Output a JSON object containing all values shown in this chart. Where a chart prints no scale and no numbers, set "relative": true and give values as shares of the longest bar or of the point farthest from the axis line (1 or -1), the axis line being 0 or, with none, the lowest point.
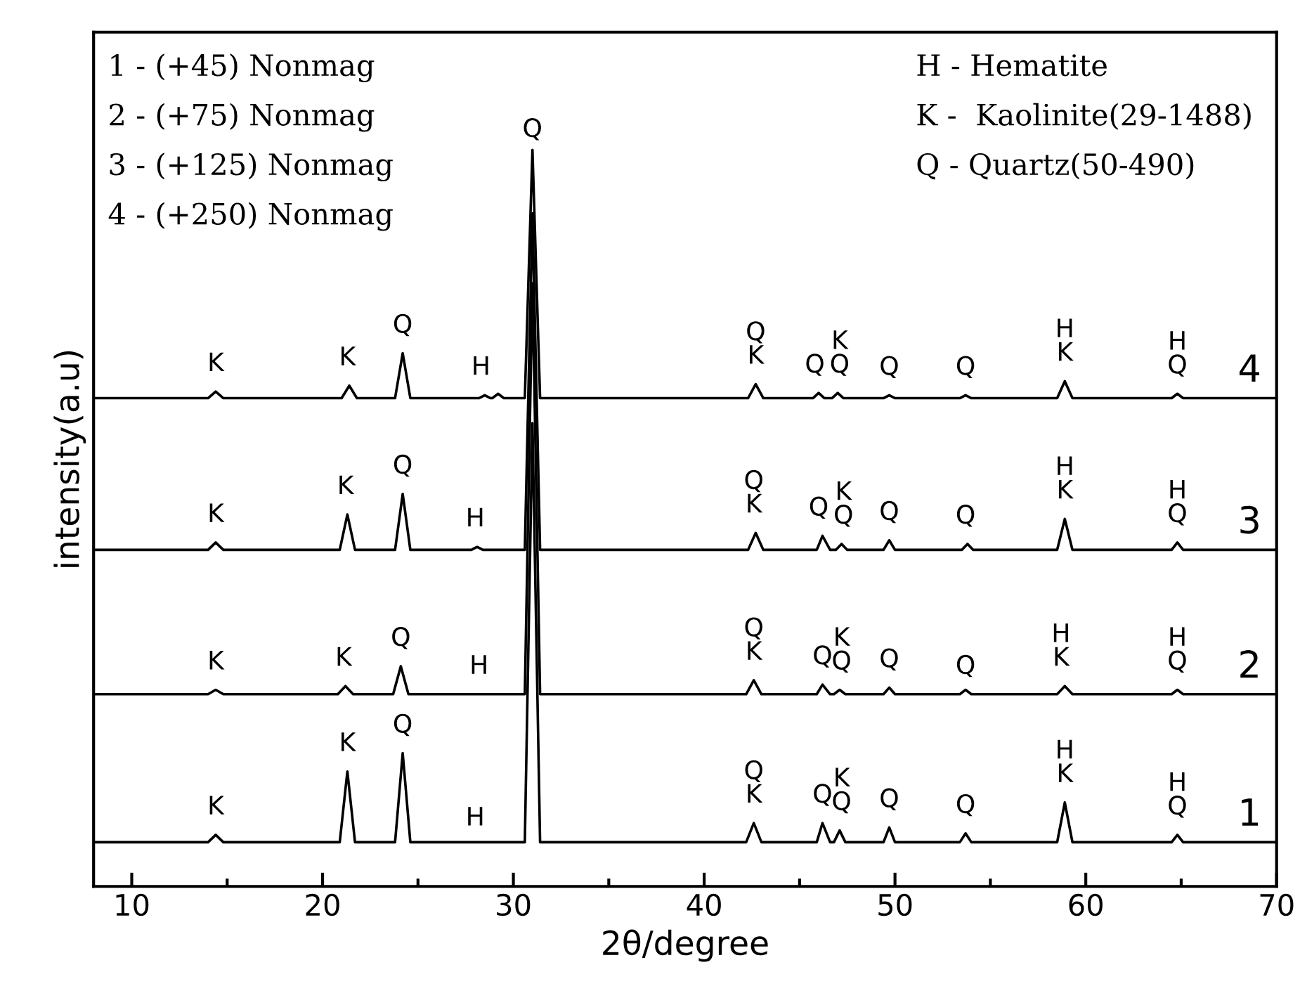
{
  "chart_data": {
    "type": "line",
    "relative": true,
    "xlabel": "2θ/degree",
    "ylabel": "intensity(a.u)",
    "xlim": [
      8,
      70
    ],
    "xticks": [
      10,
      20,
      30,
      40,
      50,
      60,
      70
    ],
    "grid": false,
    "legend": false,
    "marker": "none",
    "line_style": "solid",
    "series": [
      {
        "name": "1",
        "color": "#000000",
        "x": [
          8,
          14.0,
          14.4,
          14.8,
          20.9,
          21.3,
          21.7,
          23.8,
          24.2,
          24.6,
          30.6,
          31.0,
          31.4,
          42.2,
          42.6,
          43.0,
          45.9,
          46.2,
          46.6,
          46.8,
          47.1,
          47.4,
          49.4,
          49.7,
          50.0,
          53.4,
          53.7,
          54.0,
          58.5,
          58.9,
          59.3,
          64.5,
          64.8,
          65.1,
          70
        ],
        "values": [
          0.06,
          0.06,
          0.07,
          0.06,
          0.06,
          0.156,
          0.06,
          0.06,
          0.181,
          0.06,
          0.06,
          0.629,
          0.06,
          0.06,
          0.086,
          0.06,
          0.06,
          0.086,
          0.06,
          0.06,
          0.076,
          0.06,
          0.06,
          0.08,
          0.06,
          0.06,
          0.072,
          0.06,
          0.06,
          0.114,
          0.06,
          0.06,
          0.07,
          0.06,
          0.06
        ]
      },
      {
        "name": "2",
        "color": "#000000",
        "x": [
          8,
          14.0,
          14.4,
          14.8,
          20.8,
          21.2,
          21.6,
          23.7,
          24.1,
          24.5,
          30.6,
          31.0,
          31.4,
          42.2,
          42.6,
          43.0,
          45.9,
          46.2,
          46.6,
          46.8,
          47.1,
          47.4,
          49.4,
          49.7,
          50.0,
          53.4,
          53.7,
          54.0,
          58.5,
          58.9,
          59.3,
          64.5,
          64.8,
          65.1,
          70
        ],
        "values": [
          0.261,
          0.261,
          0.267,
          0.261,
          0.261,
          0.272,
          0.261,
          0.261,
          0.299,
          0.261,
          0.261,
          0.819,
          0.261,
          0.261,
          0.28,
          0.261,
          0.261,
          0.274,
          0.261,
          0.261,
          0.267,
          0.261,
          0.261,
          0.27,
          0.261,
          0.261,
          0.267,
          0.261,
          0.261,
          0.272,
          0.261,
          0.261,
          0.267,
          0.261,
          0.261
        ]
      },
      {
        "name": "3",
        "color": "#000000",
        "x": [
          8,
          14.0,
          14.4,
          14.8,
          20.9,
          21.3,
          21.7,
          23.8,
          24.2,
          24.6,
          27.8,
          28.1,
          28.4,
          30.6,
          31.0,
          31.4,
          42.3,
          42.7,
          43.1,
          45.9,
          46.2,
          46.6,
          46.9,
          47.2,
          47.5,
          49.4,
          49.7,
          50.0,
          53.5,
          53.8,
          54.1,
          58.5,
          58.9,
          59.3,
          64.5,
          64.8,
          65.1,
          70
        ],
        "values": [
          0.457,
          0.457,
          0.467,
          0.457,
          0.457,
          0.505,
          0.457,
          0.457,
          0.533,
          0.457,
          0.457,
          0.461,
          0.457,
          0.457,
          0.914,
          0.457,
          0.457,
          0.48,
          0.457,
          0.457,
          0.476,
          0.457,
          0.457,
          0.465,
          0.457,
          0.457,
          0.47,
          0.457,
          0.457,
          0.465,
          0.457,
          0.457,
          0.499,
          0.457,
          0.457,
          0.467,
          0.457,
          0.457
        ]
      },
      {
        "name": "4",
        "color": "#000000",
        "x": [
          8,
          14.0,
          14.4,
          14.8,
          21.0,
          21.4,
          21.8,
          23.8,
          24.2,
          24.6,
          28.2,
          28.5,
          28.8,
          28.9,
          29.2,
          29.5,
          30.6,
          31.0,
          31.4,
          42.3,
          42.7,
          43.1,
          45.7,
          46.0,
          46.3,
          46.7,
          47.0,
          47.3,
          49.4,
          49.7,
          50.0,
          53.4,
          53.7,
          54.0,
          58.5,
          58.9,
          59.3,
          64.5,
          64.8,
          65.1,
          70
        ],
        "values": [
          0.663,
          0.663,
          0.672,
          0.663,
          0.663,
          0.68,
          0.663,
          0.663,
          0.724,
          0.663,
          0.663,
          0.667,
          0.663,
          0.663,
          0.669,
          0.663,
          0.663,
          1.0,
          0.663,
          0.663,
          0.682,
          0.663,
          0.663,
          0.67,
          0.663,
          0.663,
          0.67,
          0.663,
          0.663,
          0.667,
          0.663,
          0.663,
          0.667,
          0.663,
          0.663,
          0.686,
          0.663,
          0.663,
          0.669,
          0.663,
          0.663
        ]
      }
    ],
    "annotations": [
      "1 - (+45) Nonmag",
      "2 - (+75) Nonmag",
      "3 - (+125) Nonmag",
      "4 - (+250) Nonmag",
      "H - Hematite",
      "K -  Kaolinite(29-1488)",
      "Q - Quartz(50-490)",
      {
        "text": "K",
        "x": 14.4,
        "y": 0.08
      },
      {
        "text": "K",
        "x": 21.3,
        "y": 0.166
      },
      {
        "text": "Q",
        "x": 24.2,
        "y": 0.191
      },
      {
        "text": "H",
        "x": 28.0,
        "y": 0.065
      },
      {
        "text": "Q\nK",
        "x": 42.6,
        "y": 0.096
      },
      {
        "text": "Q",
        "x": 46.2,
        "y": 0.096
      },
      {
        "text": "K\nQ",
        "x": 47.2,
        "y": 0.086
      },
      {
        "text": "Q",
        "x": 49.7,
        "y": 0.09
      },
      {
        "text": "Q",
        "x": 53.7,
        "y": 0.082
      },
      {
        "text": "H\nK",
        "x": 58.9,
        "y": 0.124
      },
      {
        "text": "H\nQ",
        "x": 64.8,
        "y": 0.08
      },
      {
        "text": "K",
        "x": 14.4,
        "y": 0.277
      },
      {
        "text": "K",
        "x": 21.1,
        "y": 0.282
      },
      {
        "text": "Q",
        "x": 24.1,
        "y": 0.309
      },
      {
        "text": "H",
        "x": 28.2,
        "y": 0.271
      },
      {
        "text": "Q\nK",
        "x": 42.6,
        "y": 0.29
      },
      {
        "text": "Q",
        "x": 46.2,
        "y": 0.284
      },
      {
        "text": "K\nQ",
        "x": 47.2,
        "y": 0.277
      },
      {
        "text": "Q",
        "x": 49.7,
        "y": 0.28
      },
      {
        "text": "Q",
        "x": 53.7,
        "y": 0.271
      },
      {
        "text": "H\nK",
        "x": 58.7,
        "y": 0.282
      },
      {
        "text": "H\nQ",
        "x": 64.8,
        "y": 0.277
      },
      {
        "text": "K",
        "x": 14.4,
        "y": 0.477
      },
      {
        "text": "K",
        "x": 21.2,
        "y": 0.515
      },
      {
        "text": "Q",
        "x": 24.2,
        "y": 0.543
      },
      {
        "text": "H",
        "x": 28.0,
        "y": 0.471
      },
      {
        "text": "Q\nK",
        "x": 42.6,
        "y": 0.49
      },
      {
        "text": "Q",
        "x": 46.0,
        "y": 0.486
      },
      {
        "text": "K\nQ",
        "x": 47.3,
        "y": 0.475
      },
      {
        "text": "Q",
        "x": 49.7,
        "y": 0.48
      },
      {
        "text": "Q",
        "x": 53.7,
        "y": 0.475
      },
      {
        "text": "H\nK",
        "x": 58.9,
        "y": 0.509
      },
      {
        "text": "H\nQ",
        "x": 64.8,
        "y": 0.477
      },
      {
        "text": "K",
        "x": 14.4,
        "y": 0.682
      },
      {
        "text": "K",
        "x": 21.3,
        "y": 0.69
      },
      {
        "text": "Q",
        "x": 24.2,
        "y": 0.734
      },
      {
        "text": "H",
        "x": 28.3,
        "y": 0.677
      },
      {
        "text": "Q",
        "x": 31.0,
        "y": 1.0
      },
      {
        "text": "Q\nK",
        "x": 42.7,
        "y": 0.692
      },
      {
        "text": "Q",
        "x": 45.8,
        "y": 0.68
      },
      {
        "text": "K\nQ",
        "x": 47.1,
        "y": 0.68
      },
      {
        "text": "Q",
        "x": 49.7,
        "y": 0.677
      },
      {
        "text": "Q",
        "x": 53.7,
        "y": 0.677
      },
      {
        "text": "H\nK",
        "x": 58.9,
        "y": 0.696
      },
      {
        "text": "H\nQ",
        "x": 64.8,
        "y": 0.679
      }
    ]
  }
}
